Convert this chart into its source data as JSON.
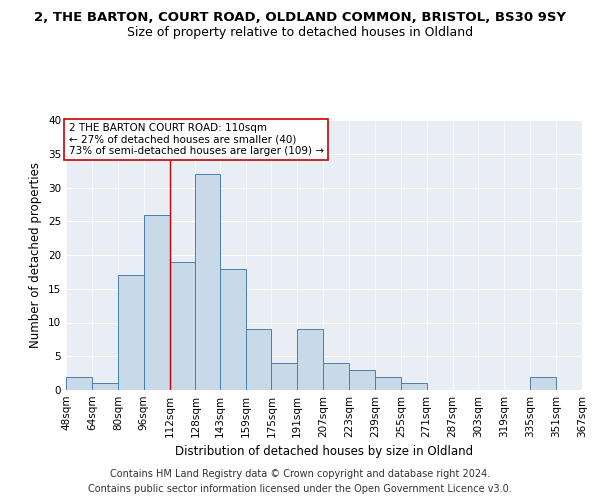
{
  "title1": "2, THE BARTON, COURT ROAD, OLDLAND COMMON, BRISTOL, BS30 9SY",
  "title2": "Size of property relative to detached houses in Oldland",
  "xlabel": "Distribution of detached houses by size in Oldland",
  "ylabel": "Number of detached properties",
  "footnote1": "Contains HM Land Registry data © Crown copyright and database right 2024.",
  "footnote2": "Contains public sector information licensed under the Open Government Licence v3.0.",
  "annotation_line1": "2 THE BARTON COURT ROAD: 110sqm",
  "annotation_line2": "← 27% of detached houses are smaller (40)",
  "annotation_line3": "73% of semi-detached houses are larger (109) →",
  "bin_edges": [
    48,
    64,
    80,
    96,
    112,
    128,
    143,
    159,
    175,
    191,
    207,
    223,
    239,
    255,
    271,
    287,
    303,
    319,
    335,
    351,
    367
  ],
  "bin_labels": [
    "48sqm",
    "64sqm",
    "80sqm",
    "96sqm",
    "112sqm",
    "128sqm",
    "143sqm",
    "159sqm",
    "175sqm",
    "191sqm",
    "207sqm",
    "223sqm",
    "239sqm",
    "255sqm",
    "271sqm",
    "287sqm",
    "303sqm",
    "319sqm",
    "335sqm",
    "351sqm",
    "367sqm"
  ],
  "counts": [
    2,
    1,
    17,
    26,
    19,
    32,
    18,
    9,
    4,
    9,
    4,
    3,
    2,
    1,
    0,
    0,
    0,
    0,
    2,
    0,
    0
  ],
  "bar_color": "#c8d9e8",
  "bar_edge_color": "#4a7fb5",
  "vline_color": "#cc0000",
  "vline_x": 112,
  "ylim": [
    0,
    40
  ],
  "yticks": [
    0,
    5,
    10,
    15,
    20,
    25,
    30,
    35,
    40
  ],
  "bg_color": "#e8eef4",
  "annotation_box_color": "#ffffff",
  "annotation_box_edge": "#cc0000",
  "title_fontsize": 9.5,
  "subtitle_fontsize": 9,
  "axis_label_fontsize": 8.5,
  "tick_fontsize": 7.5,
  "footnote_fontsize": 7
}
